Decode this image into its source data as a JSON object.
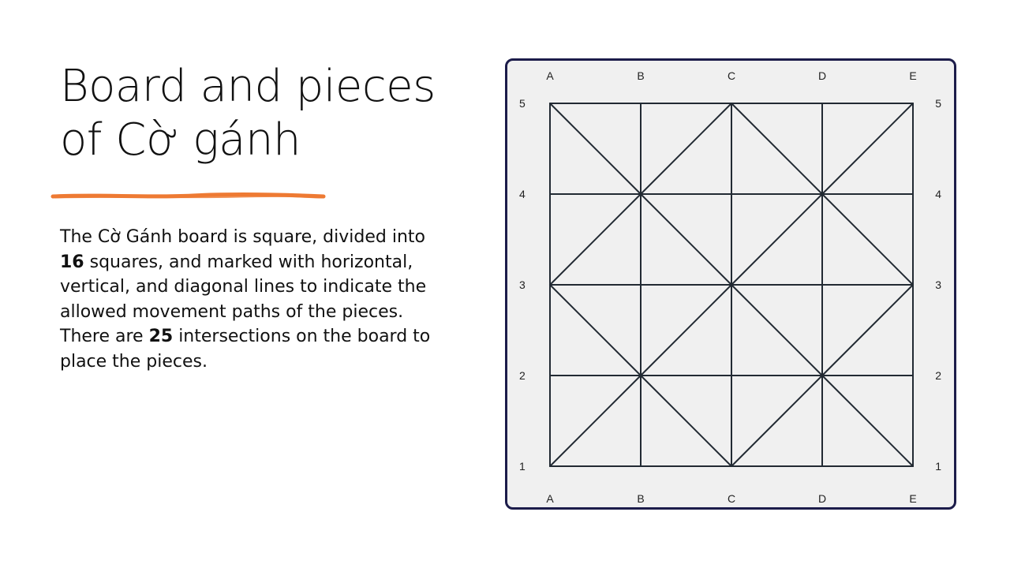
{
  "slide": {
    "title_line1": "Board and pieces",
    "title_line2": "of Cờ gánh",
    "body": {
      "p1": "The Cờ Gánh board is square, divided into ",
      "count_squares": "16",
      "p2": " squares, and marked with horizontal, vertical, and diagonal lines to indicate the allowed movement paths of the pieces. There are ",
      "count_intersections": "25",
      "p3": " intersections on the board to place the pieces."
    }
  },
  "board": {
    "columns": [
      "A",
      "B",
      "C",
      "D",
      "E"
    ],
    "rows": [
      "5",
      "4",
      "3",
      "2",
      "1"
    ],
    "grid_size": 5,
    "line_color": "#222a33",
    "frame_color": "#1c1c4a",
    "background_color": "#f0f0f0"
  },
  "accent": {
    "underline_color": "#ee7a33"
  }
}
